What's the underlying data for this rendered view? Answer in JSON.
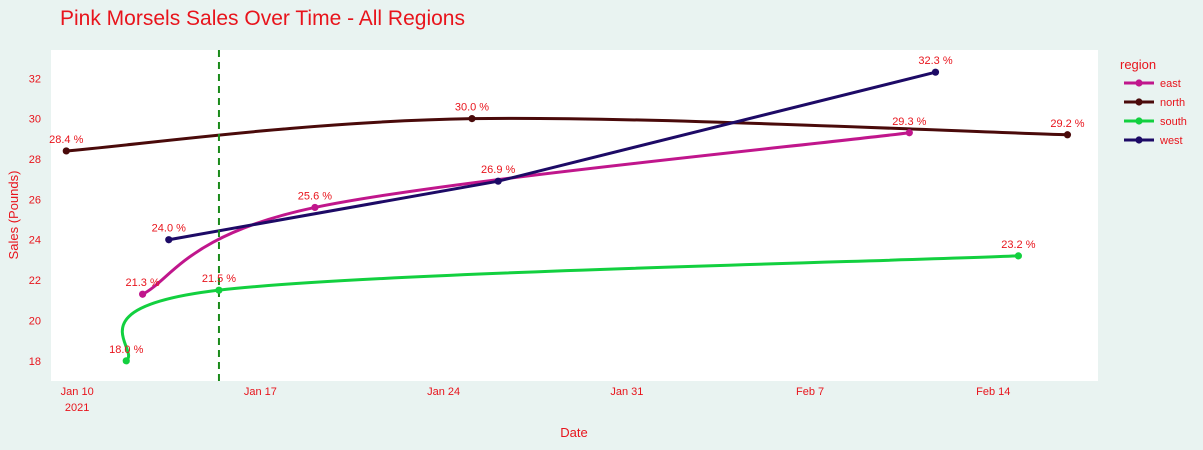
{
  "chart_data": {
    "type": "line",
    "title": "Pink Morsels Sales Over Time - All Regions",
    "xlabel": "Date",
    "ylabel": "Sales (Pounds)",
    "x_range": [
      "2021-01-09",
      "2021-02-18"
    ],
    "ylim": [
      17,
      33.4
    ],
    "x_ticks": [
      {
        "date": "2021-01-10",
        "label": "Jan 10",
        "sublabel": "2021"
      },
      {
        "date": "2021-01-17",
        "label": "Jan 17",
        "sublabel": ""
      },
      {
        "date": "2021-01-24",
        "label": "Jan 24",
        "sublabel": ""
      },
      {
        "date": "2021-01-31",
        "label": "Jan 31",
        "sublabel": ""
      },
      {
        "date": "2021-02-07",
        "label": "Feb 7",
        "sublabel": ""
      },
      {
        "date": "2021-02-14",
        "label": "Feb 14",
        "sublabel": ""
      }
    ],
    "y_ticks": [
      18,
      20,
      22,
      24,
      26,
      28,
      30,
      32
    ],
    "grid": false,
    "legend": {
      "title": "region",
      "position": "right"
    },
    "vline": {
      "date": "2021-01-15T10:00",
      "color": "#1a8a1a",
      "style": "dashed"
    },
    "series": [
      {
        "name": "east",
        "color": "#c0168c",
        "points": [
          {
            "x": "2021-01-12T12:00",
            "y": 21.3,
            "label": "21.3 %"
          },
          {
            "x": "2021-01-19T02:00",
            "y": 25.6,
            "label": "25.6 %"
          },
          {
            "x": "2021-02-10T19:00",
            "y": 29.3,
            "label": "29.3 %"
          }
        ]
      },
      {
        "name": "north",
        "color": "#4a0a0a",
        "points": [
          {
            "x": "2021-01-09T14:00",
            "y": 28.4,
            "label": "28.4 %"
          },
          {
            "x": "2021-01-25T02:00",
            "y": 30.0,
            "label": "30.0 %"
          },
          {
            "x": "2021-02-16T20:00",
            "y": 29.2,
            "label": "29.2 %"
          }
        ]
      },
      {
        "name": "south",
        "color": "#12d03f",
        "points": [
          {
            "x": "2021-01-11T21:00",
            "y": 18.0,
            "label": "18.0 %"
          },
          {
            "x": "2021-01-15T10:00",
            "y": 21.5,
            "label": "21.5 %"
          },
          {
            "x": "2021-02-14T23:00",
            "y": 23.2,
            "label": "23.2 %"
          }
        ]
      },
      {
        "name": "west",
        "color": "#1d0a66",
        "points": [
          {
            "x": "2021-01-13T12:00",
            "y": 24.0,
            "label": "24.0 %"
          },
          {
            "x": "2021-01-26T02:00",
            "y": 26.9,
            "label": "26.9 %"
          },
          {
            "x": "2021-02-11T19:00",
            "y": 32.3,
            "label": "32.3 %"
          }
        ]
      }
    ]
  }
}
